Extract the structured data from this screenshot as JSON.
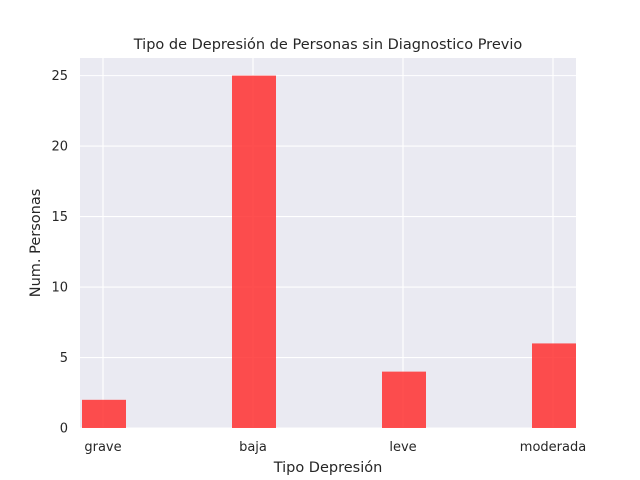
{
  "chart_data": {
    "type": "bar",
    "title": "Tipo de Depresión de Personas sin Diagnostico Previo",
    "xlabel": "Tipo Depresión",
    "ylabel": "Num. Personas",
    "categories": [
      "grave",
      "baja",
      "leve",
      "moderada"
    ],
    "values": [
      2,
      25,
      4,
      6
    ],
    "ylim": [
      0,
      26.25
    ],
    "yticks": [
      "0",
      "5",
      "10",
      "15",
      "20",
      "25"
    ],
    "grid": true,
    "bar_color": "#ff3030",
    "background_color": "#eaeaf2"
  }
}
